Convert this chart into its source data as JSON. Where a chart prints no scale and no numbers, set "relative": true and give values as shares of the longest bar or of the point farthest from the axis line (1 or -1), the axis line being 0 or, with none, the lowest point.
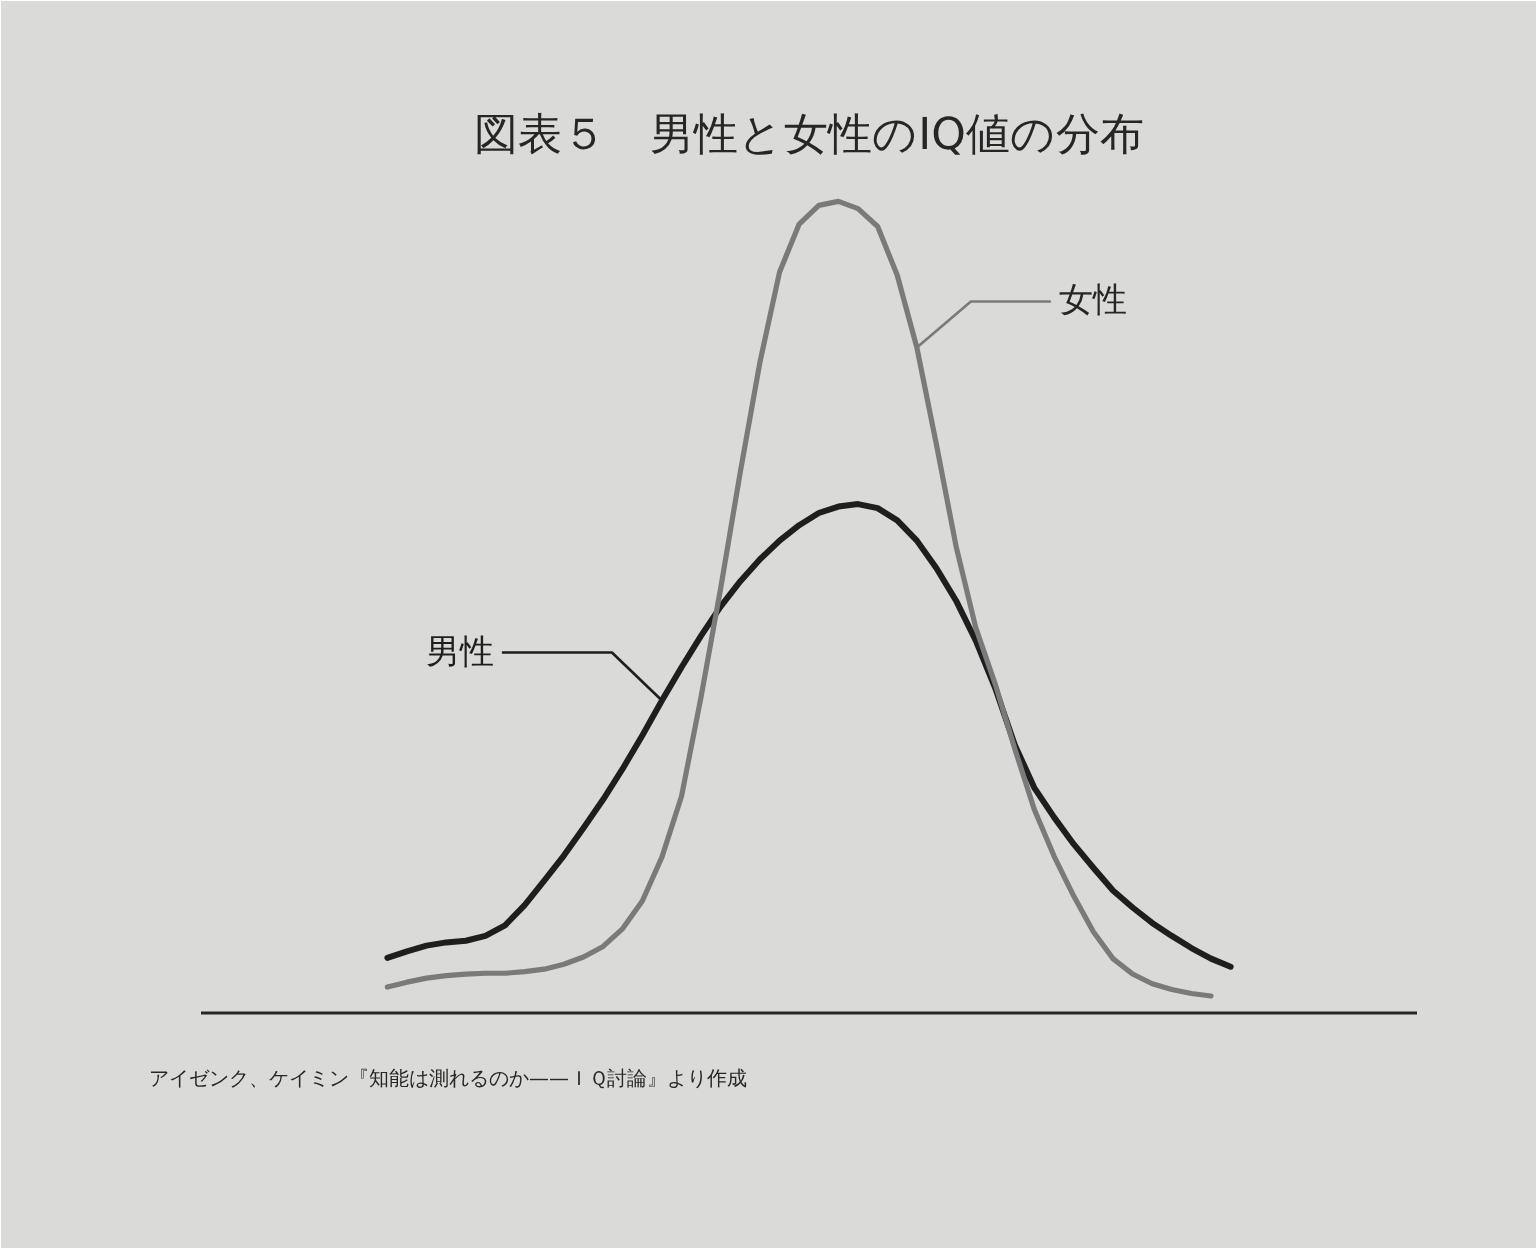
{
  "chart_data": {
    "type": "line",
    "title": "図表５　男性と女性のIQ値の分布",
    "relative": true,
    "categories": [
      null,
      null,
      null,
      null,
      null,
      null,
      null,
      null,
      null,
      null,
      null,
      null,
      null,
      null,
      null,
      null,
      null,
      null,
      null,
      null,
      null,
      null,
      null,
      null,
      null,
      null,
      null,
      null,
      null,
      null,
      null,
      null,
      null,
      null,
      null,
      null,
      null,
      null,
      null,
      null,
      null,
      null,
      null,
      null
    ],
    "series": [
      {
        "name": "男性",
        "color": "#1e1e1e",
        "values": [
          0.068,
          0.076,
          0.083,
          0.087,
          0.089,
          0.095,
          0.108,
          0.133,
          0.163,
          0.194,
          0.228,
          0.263,
          0.301,
          0.342,
          0.385,
          0.426,
          0.465,
          0.501,
          0.532,
          0.559,
          0.582,
          0.601,
          0.616,
          0.624,
          0.627,
          0.622,
          0.607,
          0.582,
          0.548,
          0.508,
          0.459,
          0.4,
          0.33,
          0.277,
          0.241,
          0.208,
          0.179,
          0.151,
          0.13,
          0.111,
          0.095,
          0.08,
          0.067,
          0.057
        ]
      },
      {
        "name": "女性",
        "color": "#7a7a7a",
        "values": [
          0.032,
          0.038,
          0.043,
          0.046,
          0.048,
          0.049,
          0.049,
          0.051,
          0.054,
          0.06,
          0.069,
          0.082,
          0.104,
          0.138,
          0.192,
          0.267,
          0.39,
          0.524,
          0.667,
          0.802,
          0.913,
          0.972,
          0.995,
          1.0,
          0.991,
          0.969,
          0.909,
          0.82,
          0.7,
          0.575,
          0.475,
          0.405,
          0.325,
          0.25,
          0.193,
          0.144,
          0.1,
          0.067,
          0.048,
          0.036,
          0.029,
          0.024,
          0.021,
          null
        ]
      }
    ],
    "annotations": [
      "アイゼンク、ケイミン『知能は測れるのか——ＩＱ討論』より作成"
    ]
  }
}
